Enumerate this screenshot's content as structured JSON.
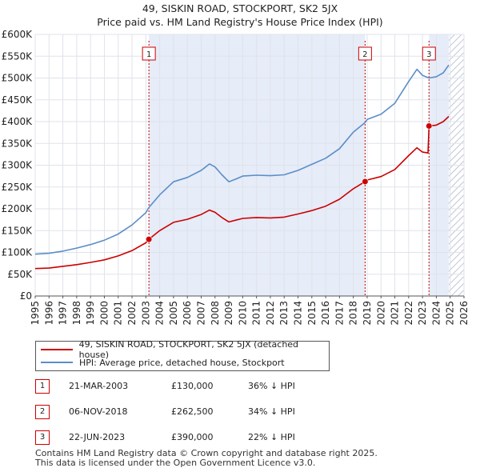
{
  "title_line1": "49, SISKIN ROAD, STOCKPORT, SK2 5JX",
  "title_line2": "Price paid vs. HM Land Registry's House Price Index (HPI)",
  "legend": {
    "property": "49, SISKIN ROAD, STOCKPORT, SK2 5JX (detached house)",
    "hpi": "HPI: Average price, detached house, Stockport"
  },
  "colors": {
    "property": "#cc0000",
    "hpi": "#5b8ec8",
    "shade": "#e6ecf8",
    "hatch": "#aab4c8"
  },
  "sales": [
    {
      "num": "1",
      "date": "21-MAR-2003",
      "price": "£130,000",
      "hpi": "36% ↓ HPI",
      "year": 2003.22,
      "value": 130000
    },
    {
      "num": "2",
      "date": "06-NOV-2018",
      "price": "£262,500",
      "hpi": "34% ↓ HPI",
      "year": 2018.85,
      "value": 262500
    },
    {
      "num": "3",
      "date": "22-JUN-2023",
      "price": "£390,000",
      "hpi": "22% ↓ HPI",
      "year": 2023.47,
      "value": 390000
    }
  ],
  "footer": {
    "line1": "Contains HM Land Registry data © Crown copyright and database right 2025.",
    "line2": "This data is licensed under the Open Government Licence v3.0."
  },
  "chart_data": {
    "type": "line",
    "title": "49, SISKIN ROAD, STOCKPORT, SK2 5JX — Price paid vs. HM Land Registry's House Price Index (HPI)",
    "xlim": [
      1995,
      2026
    ],
    "ylim": [
      0,
      600000
    ],
    "x_ticks": [
      "1995",
      "1996",
      "1997",
      "1998",
      "1999",
      "2000",
      "2001",
      "2002",
      "2003",
      "2004",
      "2005",
      "2006",
      "2007",
      "2008",
      "2009",
      "2010",
      "2011",
      "2012",
      "2013",
      "2014",
      "2015",
      "2016",
      "2017",
      "2018",
      "2019",
      "2020",
      "2021",
      "2022",
      "2023",
      "2024",
      "2025",
      "2026"
    ],
    "y_ticks": [
      {
        "value": 0,
        "label": "£0"
      },
      {
        "value": 50000,
        "label": "£50K"
      },
      {
        "value": 100000,
        "label": "£100K"
      },
      {
        "value": 150000,
        "label": "£150K"
      },
      {
        "value": 200000,
        "label": "£200K"
      },
      {
        "value": 250000,
        "label": "£250K"
      },
      {
        "value": 300000,
        "label": "£300K"
      },
      {
        "value": 350000,
        "label": "£350K"
      },
      {
        "value": 400000,
        "label": "£400K"
      },
      {
        "value": 450000,
        "label": "£450K"
      },
      {
        "value": 500000,
        "label": "£500K"
      },
      {
        "value": 550000,
        "label": "£550K"
      },
      {
        "value": 600000,
        "label": "£600K"
      }
    ],
    "shaded_spans": [
      [
        2003.22,
        2018.85
      ],
      [
        2023.47,
        2024.9
      ]
    ],
    "future_hatch_from": 2024.9,
    "series": [
      {
        "name": "HPI: Average price, detached house, Stockport",
        "x": [
          1995,
          1996,
          1997,
          1998,
          1999,
          2000,
          2001,
          2002,
          2003,
          2003.22,
          2004,
          2005,
          2006,
          2007,
          2007.6,
          2008,
          2008.5,
          2009,
          2009.5,
          2010,
          2011,
          2012,
          2013,
          2014,
          2015,
          2016,
          2017,
          2018,
          2018.85,
          2019,
          2020,
          2021,
          2022,
          2022.6,
          2023,
          2023.47,
          2024,
          2024.5,
          2024.9
        ],
        "y": [
          96000,
          98000,
          103000,
          110000,
          118000,
          128000,
          142000,
          163000,
          191000,
          203000,
          232000,
          262000,
          272000,
          288000,
          303000,
          296000,
          278000,
          262000,
          268000,
          275000,
          277000,
          276000,
          278000,
          288000,
          302000,
          316000,
          338000,
          376000,
          398000,
          405000,
          417000,
          442000,
          492000,
          520000,
          506000,
          500000,
          503000,
          512000,
          530000
        ]
      },
      {
        "name": "49, SISKIN ROAD, STOCKPORT, SK2 5JX (detached house)",
        "x": [
          1995,
          1996,
          1997,
          1998,
          1999,
          2000,
          2001,
          2002,
          2003,
          2003.22,
          2004,
          2005,
          2006,
          2007,
          2007.6,
          2008,
          2008.5,
          2009,
          2009.5,
          2010,
          2011,
          2012,
          2013,
          2014,
          2015,
          2016,
          2017,
          2018,
          2018.85,
          2019,
          2020,
          2021,
          2022,
          2022.6,
          2023,
          2023.4,
          2023.47,
          2024,
          2024.5,
          2024.9
        ],
        "y": [
          63000,
          64000,
          68000,
          72000,
          77000,
          83000,
          92000,
          104000,
          122000,
          130000,
          150000,
          169000,
          176000,
          187000,
          197000,
          192000,
          180000,
          170000,
          174000,
          178000,
          180000,
          179000,
          181000,
          188000,
          196000,
          206000,
          222000,
          246000,
          262500,
          266000,
          274000,
          290000,
          322000,
          340000,
          330000,
          328000,
          390000,
          392000,
          400000,
          412000
        ]
      }
    ]
  }
}
